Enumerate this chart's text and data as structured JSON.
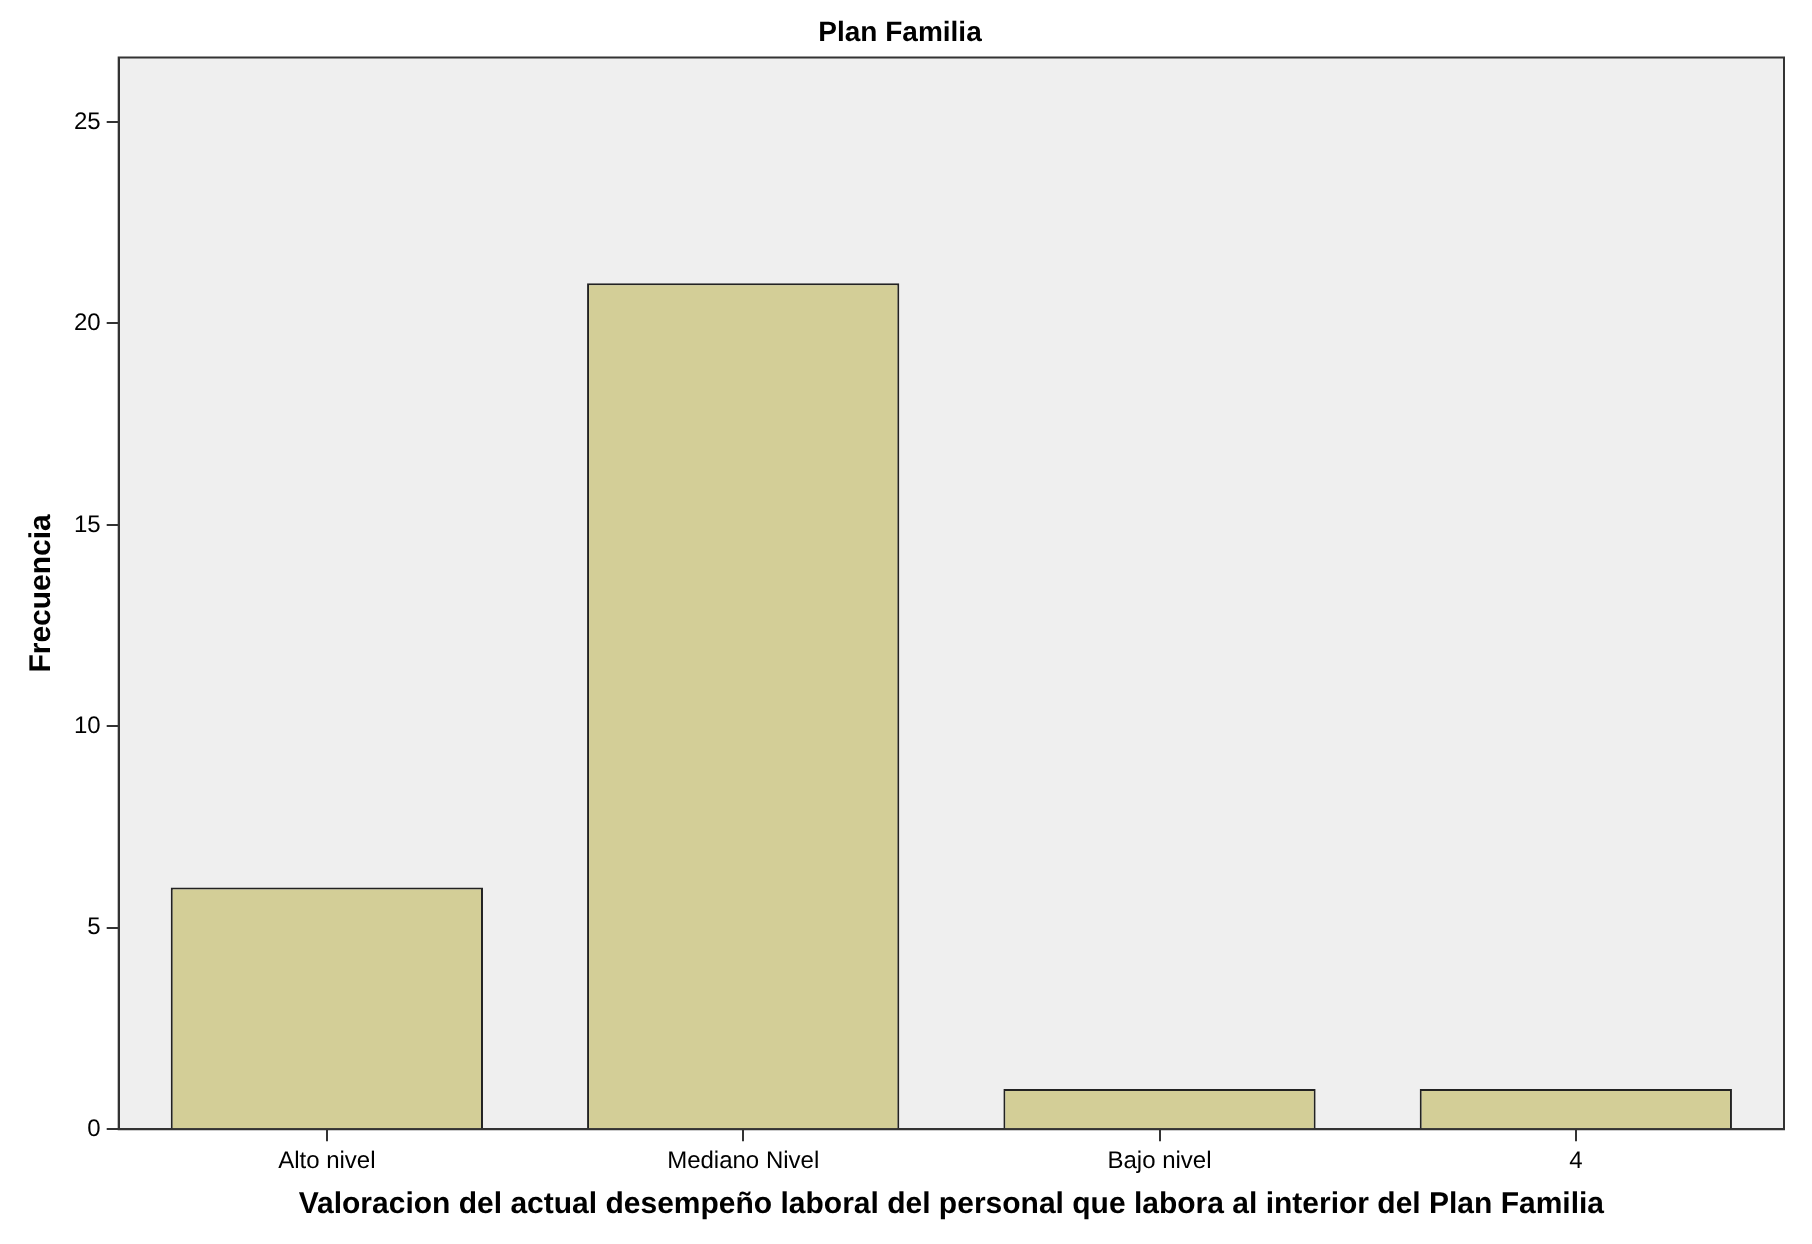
{
  "chart_data": {
    "type": "bar",
    "title": "Plan Familia",
    "xlabel": "Valoracion del actual desempeño laboral del personal que labora al interior del Plan Familia",
    "ylabel": "Frecuencia",
    "categories": [
      "Alto nivel",
      "Mediano Nivel",
      "Bajo nivel",
      "4"
    ],
    "values": [
      6,
      21,
      1,
      1
    ],
    "color": "#d3ce97",
    "ylim": [
      0,
      26.6
    ],
    "yticks": [
      0,
      5,
      10,
      15,
      20,
      25
    ],
    "grid": false,
    "legend": false
  }
}
